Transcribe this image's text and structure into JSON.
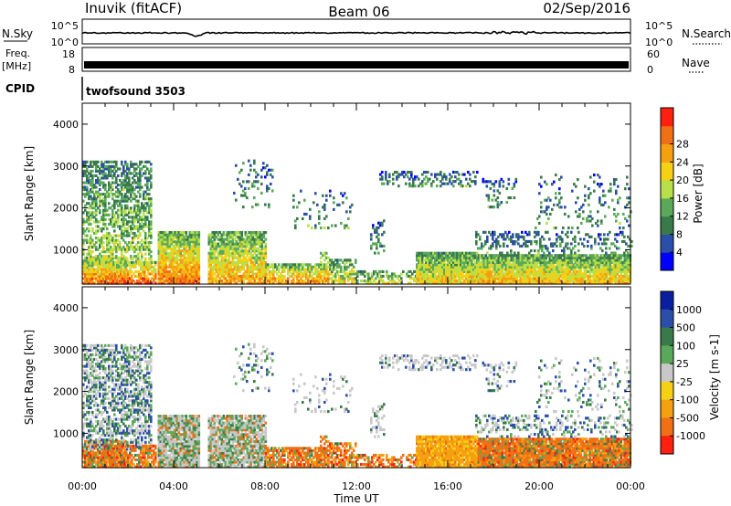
{
  "header": {
    "station": "Inuvik (fitACF)",
    "beam": "Beam 06",
    "date": "02/Sep/2016"
  },
  "strips": {
    "nsky_label": "N.Sky",
    "nsky_ticks": [
      "10^5",
      "10^0"
    ],
    "nsearch_label": "N.Search",
    "nsearch_ticks": [
      "10^5",
      "10^0"
    ],
    "freq_label": "Freq.",
    "freq_unit": "[MHz]",
    "freq_ticks": [
      "18",
      "8"
    ],
    "nave_label": "Nave",
    "nave_ticks": [
      "60",
      "0"
    ],
    "cpid_label": "CPID",
    "cpid_value": "twofsound 3503"
  },
  "colors": {
    "power": [
      "#0000ff",
      "#2b4fa8",
      "#3a7a4a",
      "#5aa95a",
      "#b7e04a",
      "#f5d015",
      "#f5a011",
      "#f07015",
      "#ff2010"
    ],
    "velocity": [
      "#0a1fa0",
      "#2b4fa8",
      "#3a7a4a",
      "#5aa95a",
      "#c8c8c8",
      "#f5d015",
      "#f5a011",
      "#f07015",
      "#ff2010"
    ]
  },
  "chart_data": [
    {
      "type": "heatmap",
      "name": "power",
      "ylabel": "Slant Range [km]",
      "xlim": [
        0,
        24
      ],
      "ylim": [
        180,
        4500
      ],
      "yticks": [
        1000,
        2000,
        3000,
        4000
      ],
      "colorbar_label": "Power [dB]",
      "colorbar_ticks": [
        "4",
        "8",
        "12",
        "16",
        "20",
        "24",
        "28"
      ]
    },
    {
      "type": "heatmap",
      "name": "velocity",
      "ylabel": "Slant Range [km]",
      "xlabel": "Time UT",
      "xlim": [
        0,
        24
      ],
      "ylim": [
        180,
        4500
      ],
      "yticks": [
        1000,
        2000,
        3000,
        4000
      ],
      "xticks": [
        "00:00",
        "04:00",
        "08:00",
        "12:00",
        "16:00",
        "20:00",
        "00:00"
      ],
      "colorbar_label": "Velocity [m s-1]",
      "colorbar_ticks": [
        "1000",
        "500",
        "100",
        "25",
        "-25",
        "-100",
        "-500",
        "-1000"
      ]
    }
  ]
}
